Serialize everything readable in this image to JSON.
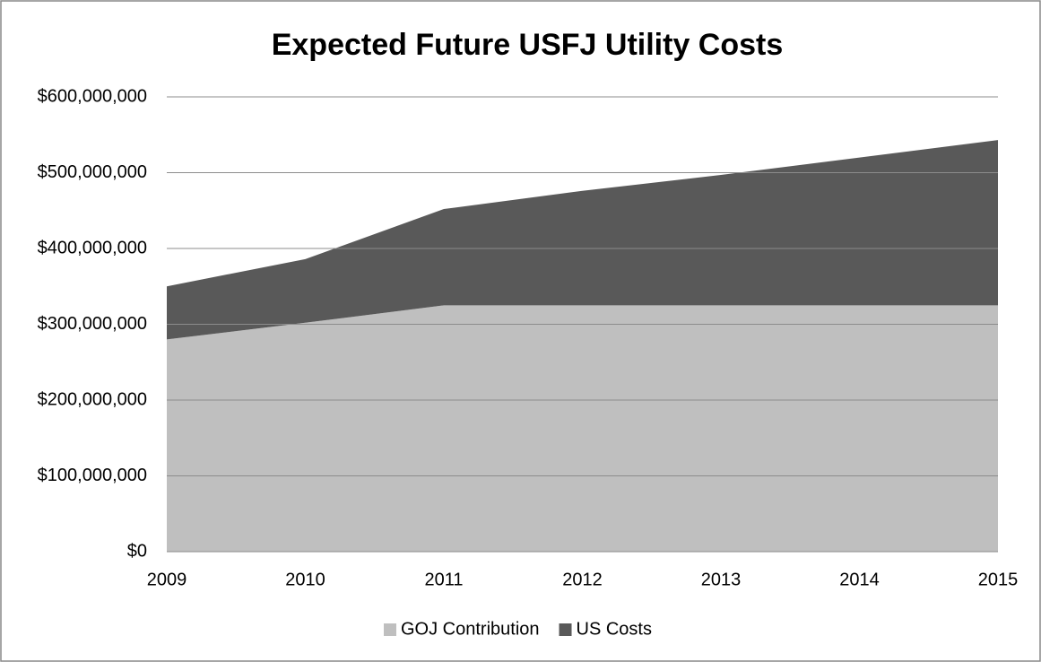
{
  "chart_data": {
    "type": "stacked-area",
    "title": "Expected Future USFJ Utility Costs",
    "categories": [
      "2009",
      "2010",
      "2011",
      "2012",
      "2013",
      "2014",
      "2015"
    ],
    "series": [
      {
        "name": "GOJ Contribution",
        "color": "#bfbfbf",
        "values": [
          280000000,
          302000000,
          325000000,
          325000000,
          325000000,
          325000000,
          325000000
        ]
      },
      {
        "name": "US Costs",
        "color": "#595959",
        "values": [
          70000000,
          84000000,
          127000000,
          151000000,
          172000000,
          195000000,
          218000000
        ]
      }
    ],
    "ylim": [
      0,
      600000000
    ],
    "yticks": [
      {
        "value": 0,
        "label": "$0"
      },
      {
        "value": 100000000,
        "label": "$100,000,000"
      },
      {
        "value": 200000000,
        "label": "$200,000,000"
      },
      {
        "value": 300000000,
        "label": "$300,000,000"
      },
      {
        "value": 400000000,
        "label": "$400,000,000"
      },
      {
        "value": 500000000,
        "label": "$500,000,000"
      },
      {
        "value": 600000000,
        "label": "$600,000,000"
      }
    ],
    "grid": true,
    "legend": "bottom"
  }
}
